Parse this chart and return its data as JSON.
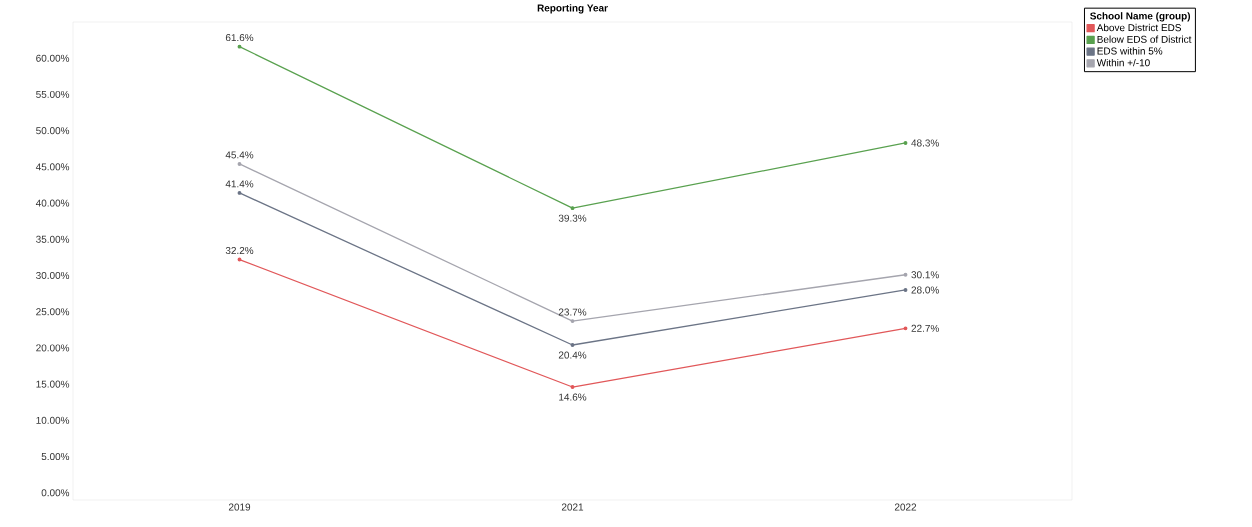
{
  "chart_data": {
    "type": "line",
    "title": "Reporting Year",
    "legend_title": "School Name (group)",
    "legend": "top right",
    "categories": [
      "2019",
      "2021",
      "2022"
    ],
    "series": [
      {
        "name": "Above District EDS",
        "color": "#e15759",
        "values": [
          32.2,
          14.6,
          22.7
        ],
        "value_labels": [
          "32.2%",
          "14.6%",
          "22.7%"
        ]
      },
      {
        "name": "Below EDS of District",
        "color": "#59a14f",
        "values": [
          61.6,
          39.3,
          48.3
        ],
        "value_labels": [
          "61.6%",
          "39.3%",
          "48.3%"
        ]
      },
      {
        "name": "EDS within 5%",
        "color": "#6b7486",
        "values": [
          41.4,
          20.4,
          28.0
        ],
        "value_labels": [
          "41.4%",
          "20.4%",
          "28.0%"
        ]
      },
      {
        "name": "Within +/-10",
        "color": "#a5a5ae",
        "values": [
          45.4,
          23.7,
          30.1
        ],
        "value_labels": [
          "45.4%",
          "23.7%",
          "30.1%"
        ]
      }
    ],
    "ylim": [
      -1,
      65
    ],
    "yticks": [
      {
        "value": 0,
        "label": "0.00%"
      },
      {
        "value": 5,
        "label": "5.00%"
      },
      {
        "value": 10,
        "label": "10.00%"
      },
      {
        "value": 15,
        "label": "15.00%"
      },
      {
        "value": 20,
        "label": "20.00%"
      },
      {
        "value": 25,
        "label": "25.00%"
      },
      {
        "value": 30,
        "label": "30.00%"
      },
      {
        "value": 35,
        "label": "35.00%"
      },
      {
        "value": 40,
        "label": "40.00%"
      },
      {
        "value": 45,
        "label": "45.00%"
      },
      {
        "value": 50,
        "label": "50.00%"
      },
      {
        "value": 55,
        "label": "55.00%"
      },
      {
        "value": 60,
        "label": "60.00%"
      }
    ],
    "grid": false,
    "marker": "circle",
    "line_style": "solid"
  }
}
